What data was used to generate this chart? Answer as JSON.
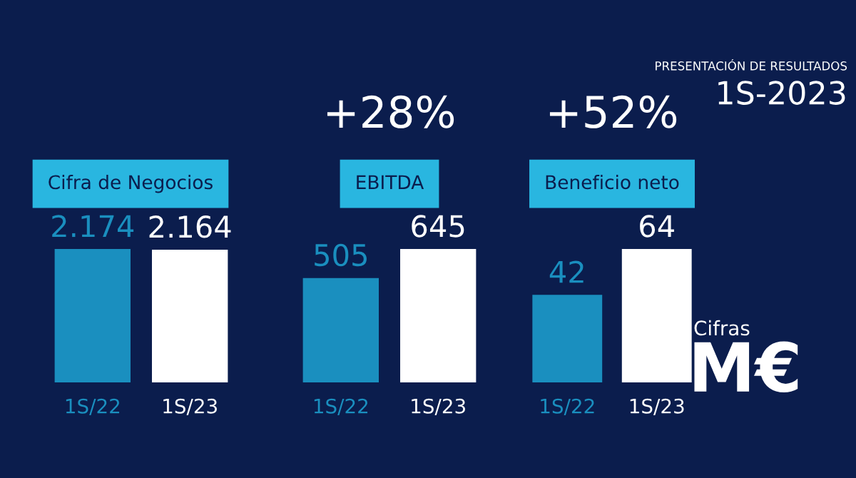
{
  "chart_data": [
    {
      "type": "bar",
      "title": "Cifra de Negocios",
      "categories": [
        "1S/22",
        "1S/23"
      ],
      "values": [
        2174,
        2164
      ],
      "colors": [
        "#1a8fbf",
        "#ffffff"
      ],
      "value_labels": [
        "2.174",
        "2.164"
      ]
    },
    {
      "type": "bar",
      "title": "EBITDA",
      "annotations": [
        "+28%"
      ],
      "categories": [
        "1S/22",
        "1S/23"
      ],
      "values": [
        505,
        645
      ],
      "colors": [
        "#1a8fbf",
        "#ffffff"
      ],
      "value_labels": [
        "505",
        "645"
      ]
    },
    {
      "type": "bar",
      "title": "Beneficio neto",
      "annotations": [
        "+52%"
      ],
      "categories": [
        "1S/22",
        "1S/23"
      ],
      "values": [
        42,
        64
      ],
      "colors": [
        "#1a8fbf",
        "#ffffff"
      ],
      "value_labels": [
        "42",
        "64"
      ]
    },
    {
      "type": "other",
      "annotations": [
        "PRESENTACIÓN DE RESULTADOS",
        "1S-2023",
        "Cifras",
        "M€"
      ]
    }
  ]
}
